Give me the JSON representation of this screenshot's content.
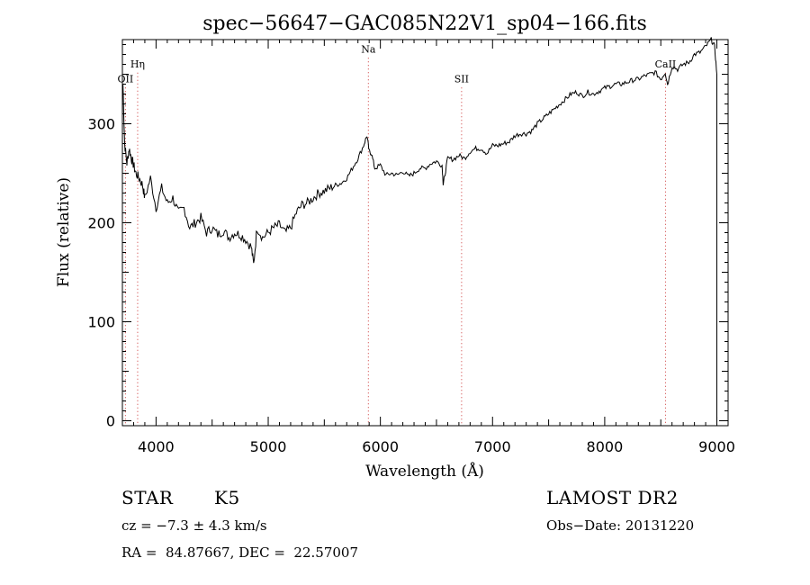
{
  "chart_data": {
    "type": "line",
    "title": "spec−56647−GAC085N22V1_sp04−166.fits",
    "xlabel": "Wavelength (Å)",
    "ylabel": "Flux (relative)",
    "xlim": [
      3700,
      9100
    ],
    "ylim": [
      -5,
      385
    ],
    "xticks": [
      4000,
      5000,
      6000,
      7000,
      8000,
      9000
    ],
    "xtick_labels": [
      "4000",
      "5000",
      "6000",
      "7000",
      "8000",
      "9000"
    ],
    "yticks": [
      0,
      100,
      200,
      300
    ],
    "ytick_labels": [
      "0",
      "100",
      "200",
      "300"
    ],
    "grid": false,
    "legend": "none",
    "line_color": "#000000",
    "marker_color": "#cc3333",
    "spectral_lines": [
      {
        "label": "OII",
        "x": 3727,
        "label_y": 342
      },
      {
        "label": "Hη",
        "x": 3836,
        "label_y": 357
      },
      {
        "label": "Na",
        "x": 5893,
        "label_y": 372
      },
      {
        "label": "SII",
        "x": 6724,
        "label_y": 342
      },
      {
        "label": "CaII",
        "x": 8542,
        "label_y": 357
      }
    ],
    "series": [
      {
        "x": [
          3705,
          3720,
          3740,
          3760,
          3780,
          3800,
          3820,
          3850,
          3880,
          3900,
          3950,
          4000,
          4050,
          4100,
          4150,
          4200,
          4250,
          4300,
          4350,
          4400,
          4450,
          4500,
          4550,
          4600,
          4650,
          4700,
          4750,
          4800,
          4850,
          4870,
          4900,
          4950,
          5000,
          5050,
          5100,
          5150,
          5200,
          5250,
          5300,
          5350,
          5400,
          5450,
          5500,
          5550,
          5600,
          5650,
          5700,
          5750,
          5800,
          5850,
          5880,
          5900,
          5920,
          5950,
          6000,
          6050,
          6100,
          6150,
          6200,
          6250,
          6300,
          6350,
          6400,
          6450,
          6500,
          6550,
          6560,
          6570,
          6600,
          6650,
          6700,
          6750,
          6800,
          6850,
          6900,
          6950,
          7000,
          7050,
          7100,
          7150,
          7200,
          7250,
          7300,
          7350,
          7400,
          7450,
          7500,
          7550,
          7600,
          7650,
          7700,
          7750,
          7800,
          7850,
          7900,
          7950,
          8000,
          8050,
          8100,
          8150,
          8200,
          8250,
          8300,
          8350,
          8400,
          8450,
          8500,
          8540,
          8560,
          8600,
          8650,
          8700,
          8750,
          8800,
          8850,
          8900,
          8950,
          8980,
          9000
        ],
        "values": [
          340,
          280,
          260,
          275,
          265,
          258,
          250,
          245,
          238,
          225,
          245,
          215,
          235,
          220,
          225,
          210,
          215,
          195,
          200,
          205,
          190,
          195,
          188,
          192,
          185,
          190,
          188,
          183,
          175,
          158,
          195,
          185,
          190,
          195,
          198,
          190,
          195,
          210,
          218,
          220,
          225,
          230,
          232,
          235,
          238,
          240,
          245,
          255,
          265,
          278,
          288,
          272,
          270,
          255,
          258,
          248,
          250,
          248,
          252,
          247,
          250,
          255,
          255,
          260,
          262,
          258,
          240,
          245,
          265,
          264,
          268,
          265,
          272,
          275,
          275,
          270,
          278,
          278,
          280,
          282,
          288,
          290,
          290,
          293,
          300,
          305,
          310,
          315,
          320,
          325,
          330,
          332,
          328,
          332,
          330,
          333,
          336,
          338,
          340,
          340,
          342,
          344,
          345,
          348,
          350,
          352,
          345,
          352,
          340,
          358,
          355,
          360,
          362,
          370,
          372,
          378,
          385,
          378,
          350
        ]
      }
    ]
  },
  "info": {
    "object_class": "STAR",
    "subclass": "K5",
    "survey": "LAMOST DR2",
    "velocity": "cz = −7.3 ± 4.3 km/s",
    "obs_date": "Obs−Date: 20131220",
    "coords": "RA =  84.87667, DEC =  22.57007"
  }
}
